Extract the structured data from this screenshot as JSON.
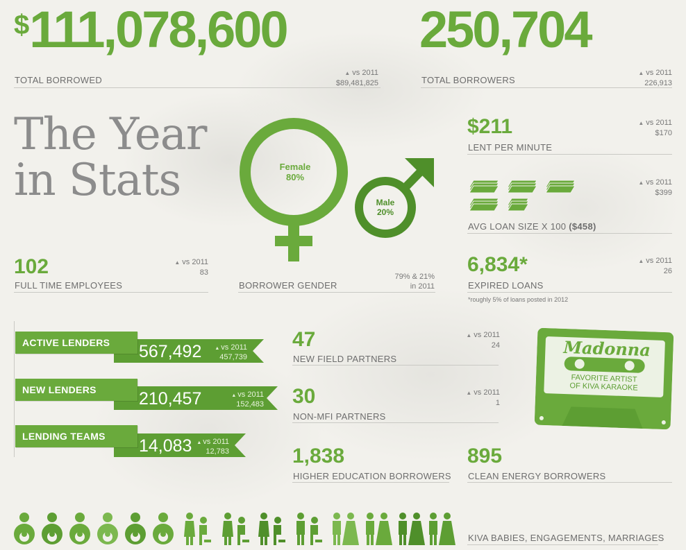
{
  "colors": {
    "accent": "#6aaa3c",
    "accent_dark": "#4f8f2a",
    "text": "#6d6d6d",
    "title_gray": "#8c8c8c"
  },
  "total_borrowed": {
    "currency": "$",
    "value": "111,078,600",
    "label": "TOTAL BORROWED",
    "vs_label": "vs 2011",
    "vs_value": "$89,481,825"
  },
  "total_borrowers": {
    "value": "250,704",
    "label": "TOTAL BORROWERS",
    "vs_label": "vs 2011",
    "vs_value": "226,913"
  },
  "title": {
    "line1": "The Year",
    "line2": "in Stats"
  },
  "gender": {
    "female_label": "Female",
    "female_pct": "80%",
    "male_label": "Male",
    "male_pct": "20%",
    "label": "BORROWER GENDER",
    "compare_line1": "79% & 21%",
    "compare_line2": "in 2011"
  },
  "lent_per_minute": {
    "value": "$211",
    "label": "LENT PER MINUTE",
    "vs_label": "vs 2011",
    "vs_value": "$170"
  },
  "avg_loan": {
    "label": "AVG LOAN SIZE x 100",
    "amount": "($458)",
    "vs_label": "vs 2011",
    "vs_value": "$399",
    "icon": "money-stack-icon"
  },
  "employees": {
    "value": "102",
    "label": "FULL TIME EMPLOYEES",
    "vs_label": "vs 2011",
    "vs_value": "83"
  },
  "expired": {
    "value": "6,834*",
    "label": "EXPIRED LOANS",
    "vs_label": "vs 2011",
    "vs_value": "26",
    "note": "*roughly 5% of loans posted in 2012"
  },
  "lenders": [
    {
      "label": "ACTIVE LENDERS",
      "value": "567,492",
      "vs_label": "vs 2011",
      "vs_value": "457,739"
    },
    {
      "label": "NEW LENDERS",
      "value": "210,457",
      "vs_label": "vs 2011",
      "vs_value": "152,483"
    },
    {
      "label": "LENDING TEAMS",
      "value": "14,083",
      "vs_label": "vs 2011",
      "vs_value": "12,783"
    }
  ],
  "field_partners": {
    "value": "47",
    "label": "NEW FIELD PARTNERS",
    "vs_label": "vs 2011",
    "vs_value": "24"
  },
  "non_mfi": {
    "value": "30",
    "label": "NON-MFI PARTNERS",
    "vs_label": "vs 2011",
    "vs_value": "1"
  },
  "karaoke": {
    "artist": "Madonna",
    "line1": "FAVORITE ARTIST",
    "line2": "OF KIVA KARAOKE",
    "icon": "cassette-icon"
  },
  "higher_ed": {
    "value": "1,838",
    "label": "HIGHER EDUCATION BORROWERS"
  },
  "clean_energy": {
    "value": "895",
    "label": "CLEAN ENERGY BORROWERS"
  },
  "life_events": {
    "label": "KIVA BABIES, ENGAGEMENTS, MARRIAGES",
    "icons": [
      "baby-icon",
      "engagement-icon",
      "marriage-icon"
    ]
  }
}
